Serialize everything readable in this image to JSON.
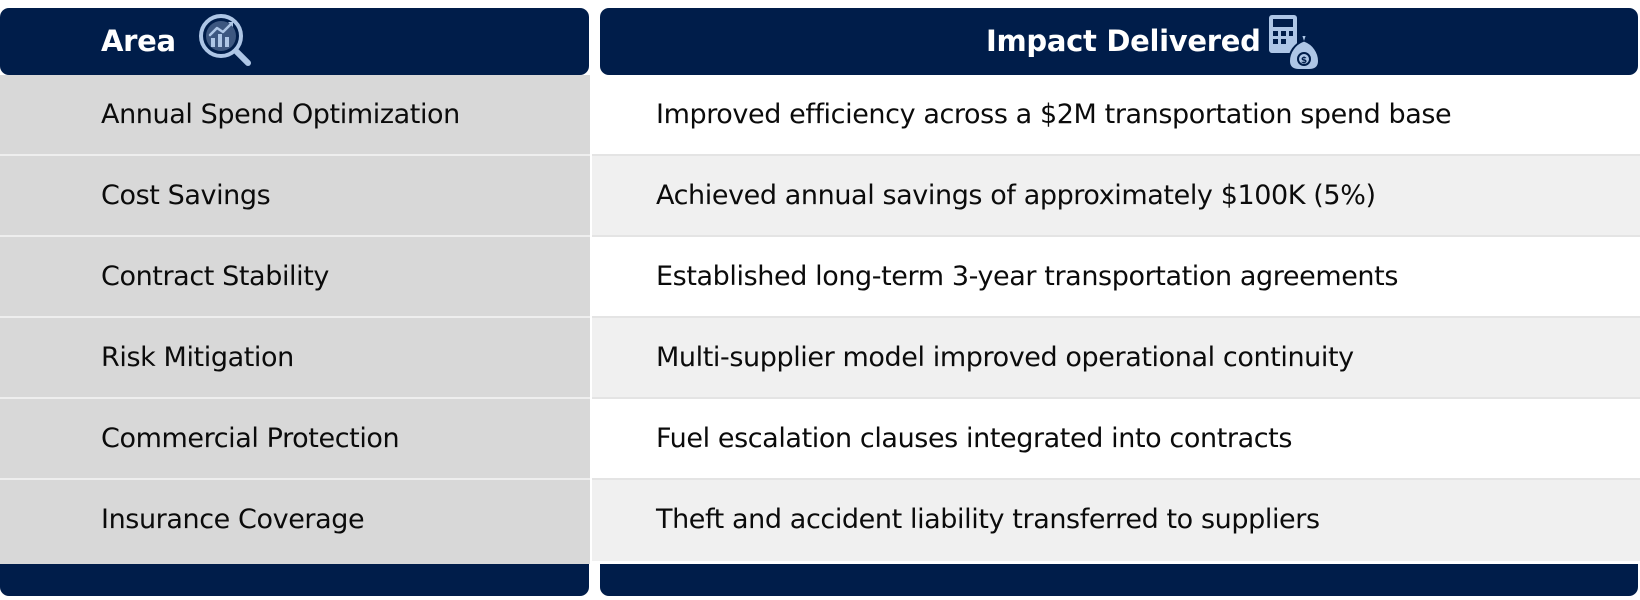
{
  "header": {
    "area_label": "Area",
    "impact_label": "Impact Delivered",
    "area_icon": "analytics-magnifier-icon",
    "impact_icon": "calculator-money-bag-icon"
  },
  "rows": [
    {
      "area": "Annual Spend Optimization",
      "impact": "Improved efficiency across a $2M transportation spend base"
    },
    {
      "area": "Cost Savings",
      "impact": "Achieved annual savings of approximately $100K (5%)"
    },
    {
      "area": "Contract Stability",
      "impact": "Established long-term 3-year transportation agreements"
    },
    {
      "area": "Risk Mitigation",
      "impact": "Multi-supplier model improved operational continuity"
    },
    {
      "area": "Commercial Protection",
      "impact": "Fuel escalation clauses integrated into contracts"
    },
    {
      "area": "Insurance Coverage",
      "impact": "Theft and accident liability transferred to suppliers"
    }
  ],
  "colors": {
    "header_bg": "#001d4a",
    "icon_fill": "#aec6e6",
    "left_col_bg": "#d8d8d8",
    "right_row_shade": "#f0f0f0"
  }
}
